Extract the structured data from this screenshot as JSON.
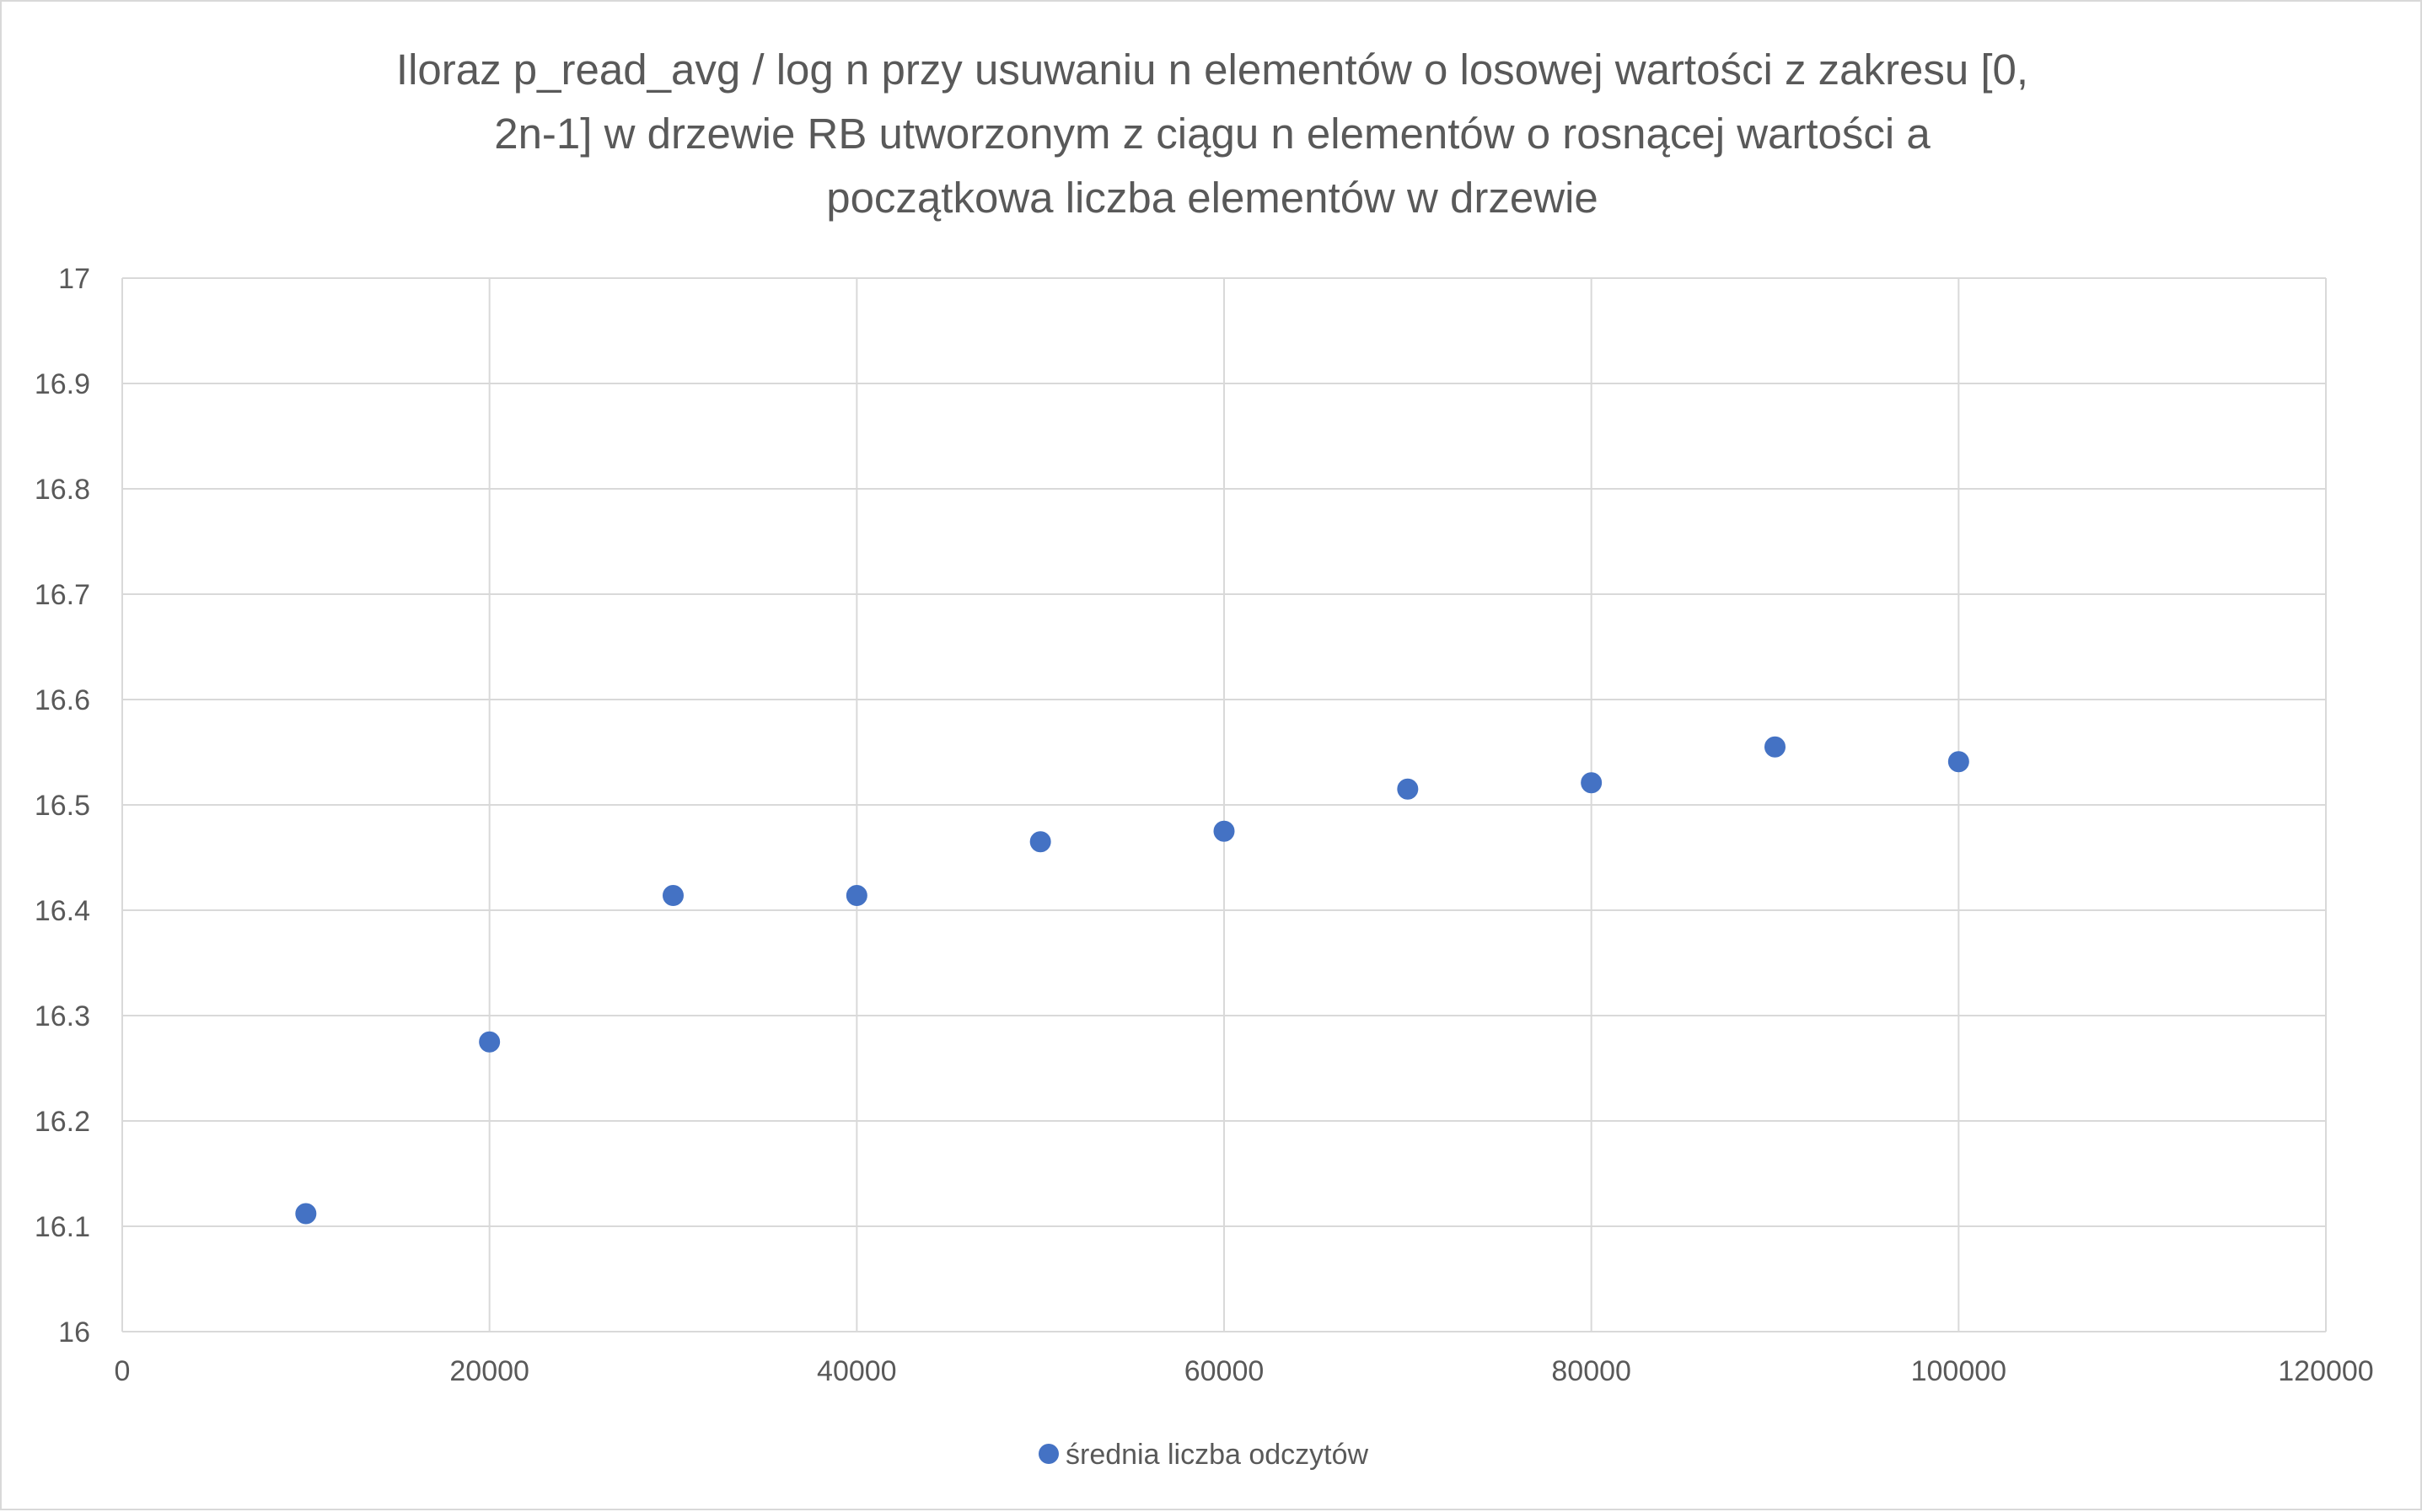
{
  "chart_data": {
    "type": "scatter",
    "title_lines": [
      "Iloraz p_read_avg / log n przy usuwaniu n elementów o losowej wartości z zakresu [0,",
      "2n-1] w drzewie RB utworzonym z ciągu n elementów o rosnącej wartości a",
      "początkowa liczba elementów w drzewie"
    ],
    "xlabel": "",
    "ylabel": "",
    "xlim": [
      0,
      120000
    ],
    "ylim": [
      16,
      17
    ],
    "x_ticks": [
      0,
      20000,
      40000,
      60000,
      80000,
      100000,
      120000
    ],
    "x_tick_labels": [
      "0",
      "20000",
      "40000",
      "60000",
      "80000",
      "100000",
      "120000"
    ],
    "y_ticks": [
      16,
      16.1,
      16.2,
      16.3,
      16.4,
      16.5,
      16.6,
      16.7,
      16.8,
      16.9,
      17
    ],
    "y_tick_labels": [
      "16",
      "16.1",
      "16.2",
      "16.3",
      "16.4",
      "16.5",
      "16.6",
      "16.7",
      "16.8",
      "16.9",
      "17"
    ],
    "grid": true,
    "legend_position": "bottom-center",
    "series": [
      {
        "name": "średnia liczba odczytów",
        "color": "#4472c4",
        "x": [
          10000,
          20000,
          30000,
          40000,
          50000,
          60000,
          70000,
          80000,
          90000,
          100000
        ],
        "y": [
          16.112,
          16.275,
          16.414,
          16.414,
          16.465,
          16.475,
          16.515,
          16.521,
          16.555,
          16.541
        ]
      }
    ]
  },
  "colors": {
    "grid": "#d9d9d9",
    "axis_text": "#595959",
    "title_text": "#595959",
    "marker": "#4472c4"
  }
}
